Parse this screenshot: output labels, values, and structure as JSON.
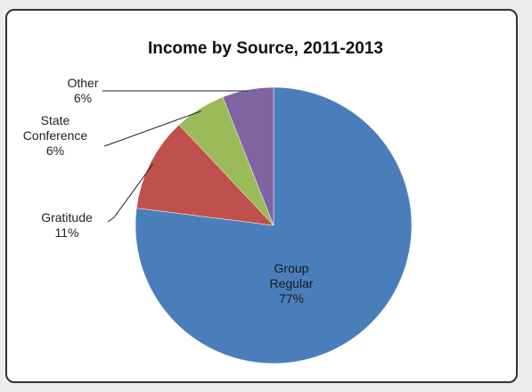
{
  "chart_data": {
    "type": "pie",
    "title": "Income by Source, 2011-2013",
    "slices": [
      {
        "label": [
          "Group",
          "Regular"
        ],
        "value": 77,
        "display": "77%",
        "color": "#4a7ebb"
      },
      {
        "label": [
          "Gratitude"
        ],
        "value": 11,
        "display": "11%",
        "color": "#c0504d"
      },
      {
        "label": [
          "State",
          "Conference"
        ],
        "value": 6,
        "display": "6%",
        "color": "#9bbb59"
      },
      {
        "label": [
          "Other"
        ],
        "value": 6,
        "display": "6%",
        "color": "#8064a2"
      }
    ]
  }
}
